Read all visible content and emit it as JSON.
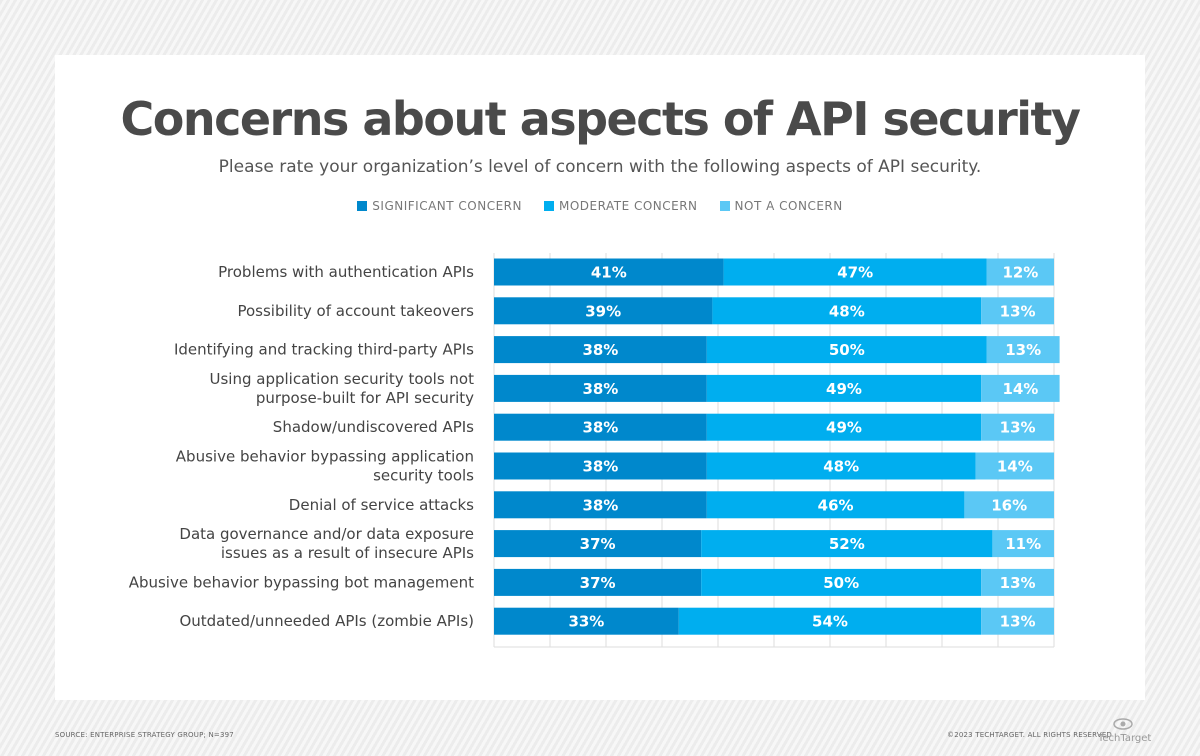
{
  "chart_data": {
    "type": "bar",
    "orientation": "horizontal",
    "stacked": true,
    "title": "Concerns about aspects of API security",
    "subtitle": "Please rate your organization’s level of concern with the following aspects of API security.",
    "legend_position": "top",
    "xlim": [
      0,
      100
    ],
    "grid": true,
    "categories": [
      "Problems with authentication APIs",
      "Possibility of account takeovers",
      "Identifying and tracking third-party APIs",
      "Using application security tools not|purpose-built for API security",
      "Shadow/undiscovered APIs",
      "Abusive behavior bypassing application|security tools",
      "Denial of service attacks",
      "Data governance and/or data exposure|issues as a result of insecure APIs",
      "Abusive behavior bypassing bot management",
      "Outdated/unneeded APIs (zombie APIs)"
    ],
    "series": [
      {
        "name": "SIGNIFICANT CONCERN",
        "color": "#0088cc",
        "values": [
          41,
          39,
          38,
          38,
          38,
          38,
          38,
          37,
          37,
          33
        ]
      },
      {
        "name": "MODERATE CONCERN",
        "color": "#00aeef",
        "values": [
          47,
          48,
          50,
          49,
          49,
          48,
          46,
          52,
          50,
          54
        ]
      },
      {
        "name": "NOT A CONCERN",
        "color": "#5bc8f5",
        "values": [
          12,
          13,
          13,
          14,
          13,
          14,
          16,
          11,
          13,
          13
        ]
      }
    ]
  },
  "footer": {
    "source": "SOURCE: ENTERPRISE STRATEGY GROUP; N=397",
    "copyright": "©2023 TECHTARGET. ALL RIGHTS RESERVED",
    "logo": "TechTarget"
  }
}
